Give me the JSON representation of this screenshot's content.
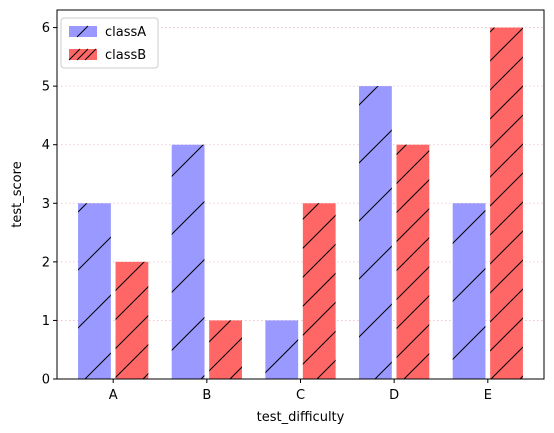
{
  "chart_data": {
    "type": "bar",
    "categories": [
      "A",
      "B",
      "C",
      "D",
      "E"
    ],
    "series": [
      {
        "name": "classA",
        "values": [
          3,
          4,
          1,
          5,
          3
        ],
        "color": "#9999ff",
        "hatch": "/"
      },
      {
        "name": "classB",
        "values": [
          2,
          1,
          3,
          4,
          6
        ],
        "color": "#ff6666",
        "hatch": "//"
      }
    ],
    "xlabel": "test_difficulty",
    "ylabel": "test_score",
    "ylim": [
      0,
      6.3
    ],
    "yticks": [
      "0",
      "1",
      "2",
      "3",
      "4",
      "5",
      "6"
    ],
    "grid": "horizontal dotted",
    "grid_color": "#ffb6c1",
    "legend_position": "top-left"
  }
}
